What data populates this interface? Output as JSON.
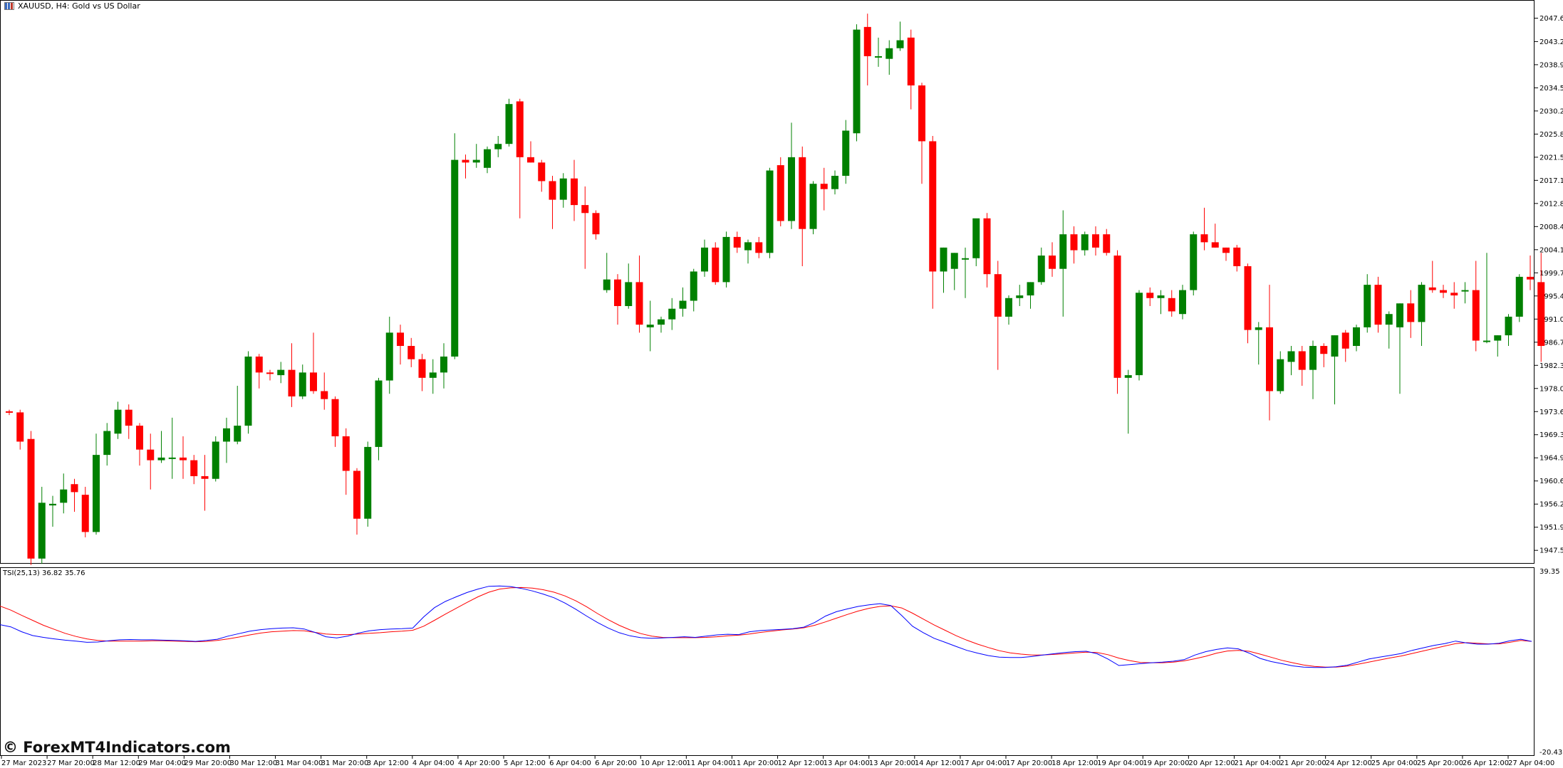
{
  "window": {
    "symbol_title": "XAUUSD, H4:  Gold vs US Dollar",
    "icon": "chart-window-icon"
  },
  "indicator": {
    "label": "TSI(25,13) 36.82 35.76",
    "scale_max": "39.35",
    "scale_min": "-20.43",
    "colors": {
      "tsi": "#0000ff",
      "signal": "#ff0000"
    }
  },
  "watermark": "© ForexMT4Indicators.com",
  "colors": {
    "bull": "#008000",
    "bear": "#ff0000",
    "wick": "#008000"
  },
  "price_axis": [
    "2047.65",
    "2043.25",
    "2038.90",
    "2034.55",
    "2030.20",
    "2025.85",
    "2021.50",
    "2017.15",
    "2012.80",
    "2008.45",
    "2004.10",
    "1999.75",
    "1995.40",
    "1991.05",
    "1986.70",
    "1982.35",
    "1978.00",
    "1973.65",
    "1969.30",
    "1964.95",
    "1960.60",
    "1956.25",
    "1951.90",
    "1947.55"
  ],
  "time_axis": [
    "27 Mar 2023",
    "27 Mar 20:00",
    "28 Mar 12:00",
    "29 Mar 04:00",
    "29 Mar 20:00",
    "30 Mar 12:00",
    "31 Mar 04:00",
    "31 Mar 20:00",
    "3 Apr 12:00",
    "4 Apr 04:00",
    "4 Apr 20:00",
    "5 Apr 12:00",
    "6 Apr 04:00",
    "6 Apr 20:00",
    "10 Apr 12:00",
    "11 Apr 04:00",
    "11 Apr 20:00",
    "12 Apr 12:00",
    "13 Apr 04:00",
    "13 Apr 20:00",
    "14 Apr 12:00",
    "17 Apr 04:00",
    "17 Apr 20:00",
    "18 Apr 12:00",
    "19 Apr 04:00",
    "19 Apr 20:00",
    "20 Apr 12:00",
    "21 Apr 04:00",
    "21 Apr 20:00",
    "24 Apr 12:00",
    "25 Apr 04:00",
    "25 Apr 20:00",
    "26 Apr 12:00",
    "27 Apr 04:00"
  ],
  "chart_data": {
    "type": "candlestick",
    "y_range": [
      1945.3,
      2050.0
    ],
    "candles": [
      [
        1973.7,
        1974.0,
        1973.0,
        1973.5
      ],
      [
        1973.5,
        1974.0,
        1966.5,
        1968.0
      ],
      [
        1968.5,
        1970.0,
        1944.8,
        1946.0
      ],
      [
        1946.0,
        1959.5,
        1945.0,
        1956.5
      ],
      [
        1956.0,
        1957.8,
        1952.0,
        1956.3
      ],
      [
        1956.5,
        1962.0,
        1954.5,
        1959.0
      ],
      [
        1960.0,
        1961.0,
        1954.8,
        1958.5
      ],
      [
        1958.0,
        1959.5,
        1950.0,
        1951.0
      ],
      [
        1951.0,
        1969.5,
        1950.5,
        1965.5
      ],
      [
        1965.5,
        1971.5,
        1963.5,
        1970.0
      ],
      [
        1969.5,
        1975.5,
        1968.5,
        1974.0
      ],
      [
        1974.0,
        1975.0,
        1968.5,
        1971.0
      ],
      [
        1971.0,
        1971.5,
        1963.5,
        1966.5
      ],
      [
        1966.5,
        1969.5,
        1959.0,
        1964.5
      ],
      [
        1964.5,
        1970.0,
        1964.0,
        1965.0
      ],
      [
        1965.0,
        1972.5,
        1961.0,
        1965.0
      ],
      [
        1965.0,
        1969.0,
        1961.0,
        1964.5
      ],
      [
        1964.5,
        1965.5,
        1960.0,
        1961.5
      ],
      [
        1961.5,
        1965.5,
        1955.0,
        1961.0
      ],
      [
        1961.0,
        1969.0,
        1960.5,
        1968.0
      ],
      [
        1968.0,
        1972.5,
        1964.0,
        1970.5
      ],
      [
        1968.0,
        1978.5,
        1967.5,
        1971.0
      ],
      [
        1971.0,
        1985.0,
        1969.5,
        1984.0
      ],
      [
        1984.0,
        1984.5,
        1978.0,
        1981.0
      ],
      [
        1981.0,
        1981.5,
        1979.5,
        1980.8
      ],
      [
        1980.5,
        1983.0,
        1979.0,
        1981.5
      ],
      [
        1981.5,
        1986.5,
        1974.5,
        1976.5
      ],
      [
        1976.5,
        1982.5,
        1976.0,
        1981.0
      ],
      [
        1981.0,
        1988.5,
        1977.0,
        1977.5
      ],
      [
        1977.5,
        1981.0,
        1974.0,
        1976.0
      ],
      [
        1976.0,
        1976.5,
        1967.0,
        1969.0
      ],
      [
        1969.0,
        1970.5,
        1958.0,
        1962.5
      ],
      [
        1962.5,
        1963.0,
        1950.5,
        1953.5
      ],
      [
        1953.5,
        1968.0,
        1952.0,
        1967.0
      ],
      [
        1967.0,
        1980.0,
        1964.5,
        1979.5
      ],
      [
        1979.5,
        1991.5,
        1977.0,
        1988.5
      ],
      [
        1988.5,
        1990.0,
        1982.5,
        1986.0
      ],
      [
        1986.0,
        1987.5,
        1982.0,
        1983.5
      ],
      [
        1983.5,
        1984.5,
        1977.5,
        1980.0
      ],
      [
        1980.0,
        1983.5,
        1977.0,
        1981.0
      ],
      [
        1981.0,
        1986.5,
        1978.0,
        1984.0
      ],
      [
        1984.0,
        2026.0,
        1983.5,
        2021.0
      ],
      [
        2021.0,
        2022.0,
        2017.5,
        2020.5
      ],
      [
        2020.5,
        2024.0,
        2019.5,
        2021.0
      ],
      [
        2019.5,
        2023.5,
        2018.5,
        2023.0
      ],
      [
        2023.0,
        2025.5,
        2021.5,
        2024.0
      ],
      [
        2024.0,
        2032.5,
        2023.5,
        2031.5
      ],
      [
        2032.0,
        2032.5,
        2010.0,
        2021.5
      ],
      [
        2021.5,
        2024.5,
        2020.5,
        2020.5
      ],
      [
        2020.5,
        2021.0,
        2015.0,
        2017.0
      ],
      [
        2017.0,
        2018.0,
        2008.0,
        2013.5
      ],
      [
        2013.5,
        2018.5,
        2012.0,
        2017.5
      ],
      [
        2017.5,
        2021.0,
        2009.5,
        2012.5
      ],
      [
        2012.5,
        2016.0,
        2000.5,
        2011.0
      ],
      [
        2011.0,
        2011.5,
        2006.0,
        2007.0
      ],
      [
        1996.5,
        2003.5,
        1996.0,
        1998.5
      ],
      [
        1998.5,
        1999.5,
        1990.0,
        1993.5
      ],
      [
        1993.5,
        2001.5,
        1993.0,
        1998.0
      ],
      [
        1998.0,
        2003.0,
        1988.5,
        1990.0
      ],
      [
        1989.5,
        1994.5,
        1985.0,
        1990.0
      ],
      [
        1990.0,
        1991.5,
        1988.5,
        1991.0
      ],
      [
        1991.0,
        1995.0,
        1989.0,
        1993.0
      ],
      [
        1993.0,
        1997.0,
        1991.5,
        1994.5
      ],
      [
        1994.5,
        2000.5,
        1992.5,
        2000.0
      ],
      [
        2000.0,
        2006.0,
        1999.0,
        2004.5
      ],
      [
        2004.5,
        2005.5,
        1997.5,
        1998.0
      ],
      [
        1998.0,
        2007.5,
        1997.0,
        2006.5
      ],
      [
        2006.5,
        2007.5,
        2003.5,
        2004.5
      ],
      [
        2004.0,
        2006.0,
        2001.5,
        2005.5
      ],
      [
        2005.5,
        2006.5,
        2002.5,
        2003.5
      ],
      [
        2003.5,
        2019.5,
        2002.5,
        2019.0
      ],
      [
        2020.0,
        2021.5,
        2008.5,
        2009.5
      ],
      [
        2009.5,
        2028.0,
        2008.0,
        2021.5
      ],
      [
        2021.5,
        2023.5,
        2001.0,
        2008.0
      ],
      [
        2008.0,
        2017.0,
        2007.0,
        2016.5
      ],
      [
        2016.5,
        2019.5,
        2011.5,
        2015.5
      ],
      [
        2015.5,
        2019.0,
        2014.5,
        2018.0
      ],
      [
        2018.0,
        2028.5,
        2016.5,
        2026.5
      ],
      [
        2026.0,
        2046.5,
        2024.5,
        2045.5
      ],
      [
        2046.0,
        2048.5,
        2035.0,
        2040.5
      ],
      [
        2040.5,
        2044.0,
        2038.5,
        2040.5
      ],
      [
        2040.0,
        2043.5,
        2037.0,
        2042.0
      ],
      [
        2042.0,
        2047.0,
        2041.5,
        2043.5
      ],
      [
        2044.0,
        2045.5,
        2030.5,
        2035.0
      ],
      [
        2035.0,
        2035.5,
        2016.5,
        2024.5
      ],
      [
        2024.5,
        2025.5,
        1993.0,
        2000.0
      ],
      [
        2000.0,
        2004.5,
        1996.0,
        2004.5
      ],
      [
        2000.5,
        2003.5,
        1996.5,
        2003.5
      ],
      [
        2002.5,
        2004.5,
        1995.0,
        2002.5
      ],
      [
        2002.5,
        2009.5,
        2001.0,
        2010.0
      ],
      [
        2010.0,
        2011.0,
        1997.0,
        1999.5
      ],
      [
        1999.5,
        2002.0,
        1981.5,
        1991.5
      ],
      [
        1991.5,
        1995.5,
        1990.0,
        1995.0
      ],
      [
        1995.0,
        1997.5,
        1993.5,
        1995.5
      ],
      [
        1995.5,
        1998.0,
        1993.0,
        1998.0
      ],
      [
        1998.0,
        2004.5,
        1997.5,
        2003.0
      ],
      [
        2003.0,
        2005.5,
        1999.0,
        2000.5
      ],
      [
        2000.5,
        2011.5,
        1991.5,
        2007.0
      ],
      [
        2007.0,
        2008.5,
        2001.5,
        2004.0
      ],
      [
        2004.0,
        2007.5,
        2003.0,
        2007.0
      ],
      [
        2007.0,
        2008.5,
        2003.0,
        2004.5
      ],
      [
        2007.0,
        2008.0,
        2003.0,
        2003.5
      ],
      [
        2003.0,
        2004.0,
        1977.0,
        1980.0
      ],
      [
        1980.0,
        1981.5,
        1969.5,
        1980.5
      ],
      [
        1980.5,
        1996.5,
        1979.5,
        1996.0
      ],
      [
        1996.0,
        1997.0,
        1993.5,
        1995.0
      ],
      [
        1995.0,
        1996.5,
        1992.0,
        1995.5
      ],
      [
        1995.0,
        1996.5,
        1991.5,
        1992.5
      ],
      [
        1992.0,
        1997.5,
        1991.0,
        1996.5
      ],
      [
        1996.5,
        2007.5,
        1995.5,
        2007.0
      ],
      [
        2007.0,
        2012.0,
        2004.0,
        2005.5
      ],
      [
        2005.5,
        2009.0,
        2004.5,
        2004.5
      ],
      [
        2004.5,
        2004.5,
        2002.0,
        2003.5
      ],
      [
        2004.5,
        2005.0,
        2000.0,
        2001.0
      ],
      [
        2001.0,
        2001.5,
        1986.5,
        1989.0
      ],
      [
        1989.0,
        1990.5,
        1982.5,
        1989.5
      ],
      [
        1989.5,
        1997.5,
        1972.0,
        1977.5
      ],
      [
        1977.5,
        1985.0,
        1977.0,
        1983.5
      ],
      [
        1983.0,
        1986.0,
        1980.5,
        1985.0
      ],
      [
        1985.0,
        1986.0,
        1978.5,
        1981.5
      ],
      [
        1981.5,
        1987.0,
        1976.0,
        1986.0
      ],
      [
        1986.0,
        1986.5,
        1982.0,
        1984.5
      ],
      [
        1984.0,
        1988.0,
        1975.0,
        1988.0
      ],
      [
        1988.5,
        1989.0,
        1983.0,
        1985.5
      ],
      [
        1986.0,
        1990.0,
        1985.0,
        1989.5
      ],
      [
        1989.5,
        1999.5,
        1988.5,
        1997.5
      ],
      [
        1997.5,
        1999.0,
        1988.5,
        1990.0
      ],
      [
        1990.0,
        1992.5,
        1985.5,
        1992.0
      ],
      [
        1989.5,
        1994.0,
        1977.0,
        1994.0
      ],
      [
        1994.0,
        1996.5,
        1987.5,
        1990.5
      ],
      [
        1990.5,
        1998.0,
        1986.0,
        1997.5
      ],
      [
        1997.0,
        2002.0,
        1996.0,
        1996.5
      ],
      [
        1996.5,
        1997.5,
        1995.0,
        1996.0
      ],
      [
        1996.0,
        1998.0,
        1993.0,
        1995.5
      ],
      [
        1996.5,
        1998.0,
        1994.0,
        1996.5
      ],
      [
        1996.5,
        2002.0,
        1985.0,
        1987.0
      ],
      [
        1987.0,
        2003.5,
        1986.5,
        1987.0
      ],
      [
        1987.0,
        1988.0,
        1984.0,
        1988.0
      ],
      [
        1988.0,
        1992.0,
        1986.0,
        1991.5
      ],
      [
        1991.5,
        1999.5,
        1990.5,
        1999.0
      ],
      [
        1999.0,
        2003.0,
        1996.5,
        1998.5
      ],
      [
        1998.0,
        2003.5,
        1983.0,
        1986.0
      ]
    ],
    "tsi": [
      21.5,
      20.8,
      19.2,
      18.0,
      17.4,
      16.9,
      16.5,
      16.2,
      15.8,
      15.9,
      16.3,
      16.6,
      16.7,
      16.6,
      16.6,
      16.5,
      16.4,
      16.3,
      16.1,
      16.4,
      16.8,
      17.8,
      18.6,
      19.4,
      19.9,
      20.2,
      20.4,
      20.5,
      20.1,
      19.0,
      17.6,
      17.2,
      17.8,
      18.8,
      19.5,
      19.9,
      20.1,
      20.2,
      20.4,
      24.0,
      27.0,
      29.0,
      30.5,
      31.9,
      33.0,
      33.9,
      34.0,
      33.8,
      33.2,
      32.4,
      31.4,
      30.2,
      28.5,
      26.5,
      24.3,
      22.2,
      20.4,
      18.9,
      17.9,
      17.3,
      17.1,
      17.2,
      17.4,
      17.6,
      17.4,
      17.8,
      18.2,
      18.4,
      18.3,
      19.2,
      19.6,
      19.8,
      20.0,
      20.2,
      20.7,
      22.2,
      24.3,
      25.7,
      26.6,
      27.4,
      27.9,
      28.3,
      27.7,
      24.5,
      21.0,
      18.9,
      17.1,
      15.8,
      14.5,
      13.2,
      12.3,
      11.5,
      11.0,
      10.9,
      10.9,
      11.2,
      11.7,
      12.1,
      12.5,
      12.8,
      12.9,
      12.1,
      10.4,
      8.3,
      8.6,
      8.9,
      9.2,
      9.4,
      9.7,
      10.2,
      11.7,
      12.8,
      13.5,
      14.0,
      13.7,
      12.3,
      10.6,
      9.6,
      8.9,
      8.2,
      7.8,
      7.7,
      7.7,
      7.9,
      8.4,
      9.4,
      10.4,
      11.0,
      11.6,
      12.2,
      13.2,
      14.0,
      14.8,
      15.4,
      16.2,
      15.6,
      15.2,
      15.2,
      15.5,
      16.3,
      16.8,
      16.1
    ],
    "signal": [
      27.5,
      26.2,
      24.5,
      22.9,
      21.3,
      20.0,
      18.7,
      17.7,
      16.9,
      16.4,
      16.2,
      16.2,
      16.2,
      16.2,
      16.3,
      16.3,
      16.2,
      16.1,
      16.0,
      16.1,
      16.4,
      16.9,
      17.5,
      18.2,
      18.8,
      19.2,
      19.4,
      19.6,
      19.5,
      19.0,
      18.5,
      18.3,
      18.3,
      18.5,
      18.7,
      18.9,
      19.2,
      19.4,
      19.7,
      21.0,
      22.9,
      24.9,
      26.8,
      28.7,
      30.5,
      32.0,
      33.0,
      33.4,
      33.5,
      33.3,
      32.8,
      32.0,
      30.8,
      29.2,
      27.3,
      25.1,
      23.1,
      21.3,
      19.8,
      18.6,
      17.8,
      17.4,
      17.3,
      17.3,
      17.3,
      17.4,
      17.6,
      17.9,
      18.1,
      18.5,
      19.0,
      19.4,
      19.8,
      20.1,
      20.5,
      21.3,
      22.4,
      23.6,
      24.8,
      25.9,
      26.8,
      27.4,
      27.6,
      26.9,
      25.2,
      23.3,
      21.4,
      19.7,
      18.0,
      16.5,
      15.2,
      14.1,
      13.1,
      12.4,
      12.0,
      11.7,
      11.7,
      11.9,
      12.1,
      12.4,
      12.6,
      12.5,
      11.8,
      10.7,
      9.9,
      9.3,
      9.2,
      9.2,
      9.4,
      9.8,
      10.5,
      11.3,
      12.3,
      13.0,
      13.2,
      12.9,
      12.0,
      11.0,
      10.0,
      9.2,
      8.5,
      8.0,
      7.8,
      7.8,
      8.1,
      8.7,
      9.4,
      10.1,
      10.8,
      11.4,
      12.2,
      13.0,
      13.8,
      14.6,
      15.4,
      15.7,
      15.5,
      15.3,
      15.3,
      15.8,
      16.4,
      16.1
    ],
    "tsi_range": [
      -20.43,
      39.35
    ]
  }
}
